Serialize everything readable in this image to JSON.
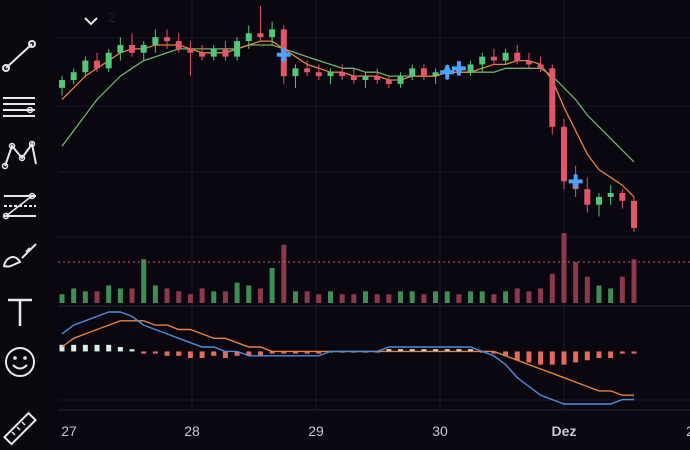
{
  "toolbar": {
    "items": [
      {
        "name": "crosshair-tool",
        "icon": "crosshair-icon"
      },
      {
        "name": "trend-line-tool",
        "icon": "trend-line-icon"
      },
      {
        "name": "parallel-lines-tool",
        "icon": "horizontal-lines-icon"
      },
      {
        "name": "pattern-tool",
        "icon": "pattern-icon"
      },
      {
        "name": "fib-tool",
        "icon": "fib-retracement-icon"
      },
      {
        "name": "brush-tool",
        "icon": "brush-icon"
      },
      {
        "name": "text-tool",
        "icon": "text-icon"
      },
      {
        "name": "emoji-tool",
        "icon": "smiley-icon"
      },
      {
        "name": "ruler-tool",
        "icon": "ruler-icon"
      }
    ]
  },
  "legend": {
    "count": "2"
  },
  "colors": {
    "up": "#52c77a",
    "down": "#e0566a",
    "volume_up": "#3f8f55",
    "volume_down": "#8c3a4b",
    "ma_fast": "#e8823a",
    "ma_slow": "#6fb36a",
    "macd": "#4a8fe0",
    "signal": "#e8823a",
    "hist_pos": "#d8efe8",
    "hist_neg": "#e56a5c",
    "marker": "#4aa3ff",
    "price_line": "#e05563"
  },
  "chart_data": {
    "type": "candlestick",
    "x_axis": {
      "labels": [
        "27",
        "28",
        "29",
        "30",
        "Dez",
        "2"
      ]
    },
    "price_line_style": "dotted-red",
    "markers": [
      19,
      33,
      34,
      44
    ],
    "candles": [
      {
        "o": 100,
        "h": 103,
        "l": 98,
        "c": 102
      },
      {
        "o": 102,
        "h": 105,
        "l": 101,
        "c": 104
      },
      {
        "o": 104,
        "h": 108,
        "l": 103,
        "c": 107
      },
      {
        "o": 107,
        "h": 109,
        "l": 104,
        "c": 105
      },
      {
        "o": 105,
        "h": 110,
        "l": 104,
        "c": 109
      },
      {
        "o": 109,
        "h": 113,
        "l": 107,
        "c": 111
      },
      {
        "o": 111,
        "h": 114,
        "l": 108,
        "c": 109
      },
      {
        "o": 109,
        "h": 112,
        "l": 107,
        "c": 111
      },
      {
        "o": 111,
        "h": 115,
        "l": 109,
        "c": 113
      },
      {
        "o": 113,
        "h": 115,
        "l": 110,
        "c": 112
      },
      {
        "o": 112,
        "h": 114,
        "l": 109,
        "c": 110
      },
      {
        "o": 110,
        "h": 112,
        "l": 103,
        "c": 109
      },
      {
        "o": 109,
        "h": 111,
        "l": 107,
        "c": 108
      },
      {
        "o": 108,
        "h": 111,
        "l": 107,
        "c": 110
      },
      {
        "o": 110,
        "h": 112,
        "l": 107,
        "c": 108
      },
      {
        "o": 108,
        "h": 113,
        "l": 107,
        "c": 112
      },
      {
        "o": 112,
        "h": 116,
        "l": 110,
        "c": 114
      },
      {
        "o": 114,
        "h": 121,
        "l": 112,
        "c": 113
      },
      {
        "o": 113,
        "h": 117,
        "l": 111,
        "c": 115
      },
      {
        "o": 115,
        "h": 116,
        "l": 101,
        "c": 103
      },
      {
        "o": 103,
        "h": 106,
        "l": 100,
        "c": 105
      },
      {
        "o": 105,
        "h": 107,
        "l": 103,
        "c": 104
      },
      {
        "o": 104,
        "h": 106,
        "l": 102,
        "c": 103
      },
      {
        "o": 103,
        "h": 105,
        "l": 101,
        "c": 104
      },
      {
        "o": 104,
        "h": 106,
        "l": 102,
        "c": 103
      },
      {
        "o": 103,
        "h": 105,
        "l": 101,
        "c": 102
      },
      {
        "o": 102,
        "h": 104,
        "l": 100,
        "c": 103
      },
      {
        "o": 103,
        "h": 105,
        "l": 101,
        "c": 102
      },
      {
        "o": 102,
        "h": 103,
        "l": 100,
        "c": 101
      },
      {
        "o": 101,
        "h": 104,
        "l": 100,
        "c": 103
      },
      {
        "o": 103,
        "h": 106,
        "l": 102,
        "c": 105
      },
      {
        "o": 105,
        "h": 106,
        "l": 102,
        "c": 103
      },
      {
        "o": 103,
        "h": 105,
        "l": 101,
        "c": 104
      },
      {
        "o": 104,
        "h": 106,
        "l": 102,
        "c": 105
      },
      {
        "o": 105,
        "h": 107,
        "l": 103,
        "c": 104
      },
      {
        "o": 104,
        "h": 107,
        "l": 103,
        "c": 106
      },
      {
        "o": 106,
        "h": 109,
        "l": 104,
        "c": 108
      },
      {
        "o": 108,
        "h": 110,
        "l": 106,
        "c": 107
      },
      {
        "o": 107,
        "h": 110,
        "l": 106,
        "c": 109
      },
      {
        "o": 109,
        "h": 111,
        "l": 106,
        "c": 107
      },
      {
        "o": 107,
        "h": 109,
        "l": 105,
        "c": 106
      },
      {
        "o": 106,
        "h": 108,
        "l": 104,
        "c": 105
      },
      {
        "o": 105,
        "h": 106,
        "l": 88,
        "c": 90
      },
      {
        "o": 90,
        "h": 92,
        "l": 74,
        "c": 76
      },
      {
        "o": 76,
        "h": 80,
        "l": 72,
        "c": 74
      },
      {
        "o": 74,
        "h": 77,
        "l": 68,
        "c": 70
      },
      {
        "o": 70,
        "h": 73,
        "l": 67,
        "c": 72
      },
      {
        "o": 72,
        "h": 75,
        "l": 70,
        "c": 73
      },
      {
        "o": 73,
        "h": 74,
        "l": 69,
        "c": 71
      },
      {
        "o": 71,
        "h": 72,
        "l": 63,
        "c": 64
      }
    ],
    "volume": [
      3,
      5,
      4,
      4,
      6,
      5,
      5,
      15,
      6,
      5,
      4,
      3,
      5,
      4,
      4,
      7,
      6,
      5,
      12,
      20,
      4,
      4,
      3,
      4,
      3,
      3,
      4,
      3,
      3,
      4,
      4,
      3,
      4,
      4,
      3,
      4,
      4,
      3,
      4,
      5,
      4,
      5,
      10,
      24,
      14,
      9,
      6,
      5,
      9,
      15
    ],
    "ma_fast": [
      97,
      100,
      103,
      105,
      107,
      109,
      110,
      110,
      111,
      111,
      111,
      110,
      109,
      109,
      109,
      110,
      111,
      112,
      112,
      110,
      108,
      106,
      105,
      104,
      104,
      103,
      103,
      103,
      102,
      102,
      103,
      103,
      103,
      104,
      104,
      104,
      105,
      106,
      106,
      107,
      107,
      106,
      102,
      95,
      89,
      83,
      79,
      77,
      75,
      72
    ],
    "ma_slow": [
      85,
      89,
      93,
      97,
      100,
      103,
      105,
      107,
      108,
      109,
      110,
      110,
      110,
      110,
      110,
      110,
      111,
      111,
      111,
      110,
      109,
      108,
      107,
      106,
      105,
      105,
      104,
      104,
      103,
      103,
      103,
      103,
      103,
      104,
      104,
      104,
      104,
      104,
      105,
      105,
      105,
      105,
      103,
      100,
      97,
      93,
      90,
      87,
      84,
      81
    ],
    "macd": [
      4,
      6,
      7,
      8,
      9,
      9,
      8,
      6,
      5,
      4,
      3,
      2,
      1,
      1,
      0,
      0,
      -1,
      -1,
      -1,
      -1,
      -1,
      -1,
      -1,
      0,
      0,
      0,
      0,
      0,
      1,
      1,
      1,
      1,
      1,
      1,
      1,
      1,
      0,
      -1,
      -3,
      -6,
      -8,
      -10,
      -11,
      -12,
      -12,
      -12,
      -12,
      -12,
      -11,
      -11
    ],
    "signal": [
      1,
      3,
      4,
      5,
      6,
      7,
      7,
      7,
      6,
      6,
      5,
      5,
      4,
      3,
      3,
      2,
      1,
      1,
      0,
      0,
      0,
      0,
      0,
      0,
      0,
      0,
      0,
      0,
      0,
      0,
      0,
      0,
      0,
      0,
      0,
      0,
      0,
      0,
      -1,
      -2,
      -3,
      -4,
      -5,
      -6,
      -7,
      -8,
      -9,
      -9,
      -10,
      -10
    ]
  }
}
